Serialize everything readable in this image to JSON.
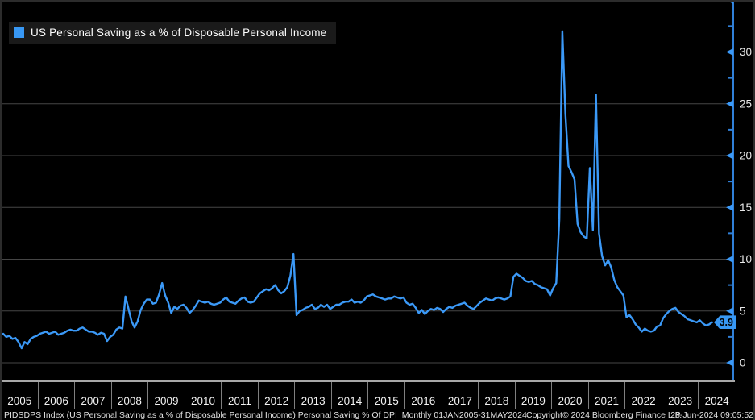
{
  "colors": {
    "background": "#000000",
    "line": "#3b99f7",
    "axis": "#3080d8",
    "gridline": "#464646",
    "tick_label": "#e9e9e9",
    "legend_bg": "#1a1a1a",
    "tag_bg": "#3898f4",
    "tag_text": "#000000",
    "frame_border": "#2c2c2c",
    "xaxis_border": "#a8a8a8"
  },
  "legend": {
    "label": "US Personal Saving as a % of Disposable Personal Income",
    "swatch_color": "#3898f4"
  },
  "last_value_label": "3.9",
  "y_axis": {
    "tick_labels": [
      "0",
      "5",
      "10",
      "15",
      "20",
      "25",
      "30"
    ],
    "side": "right"
  },
  "x_axis": {
    "years": [
      "2005",
      "2006",
      "2007",
      "2008",
      "2009",
      "2010",
      "2011",
      "2012",
      "2013",
      "2014",
      "2015",
      "2016",
      "2017",
      "2018",
      "2019",
      "2020",
      "2021",
      "2022",
      "2023",
      "2024"
    ]
  },
  "status_bar": {
    "left": "PIDSDPS Index (US Personal Saving as a % of Disposable Personal Income) Personal Saving % Of DPI  Monthly 01JAN2005-31MAY2024",
    "center": "Copyright© 2024 Bloomberg Finance L.P.",
    "right": "28-Jun-2024 09:05:52"
  },
  "chart_data": {
    "type": "line",
    "title": "US Personal Saving as a % of Disposable Personal Income",
    "frequency": "monthly",
    "x_start": "2005-01",
    "x_end": "2024-05",
    "ylabel": "",
    "ylim": [
      0,
      35
    ],
    "y_ticks": [
      0,
      5,
      10,
      15,
      20,
      25,
      30,
      35
    ],
    "grid": true,
    "legend_position": "top-left",
    "last_value": 3.9,
    "series": [
      {
        "name": "US Personal Saving as a % of Disposable Personal Income",
        "color": "#3b99f7",
        "values": [
          2.8,
          2.5,
          2.6,
          2.3,
          2.4,
          2.0,
          1.4,
          2.0,
          1.8,
          2.3,
          2.5,
          2.6,
          2.8,
          2.9,
          3.0,
          2.8,
          2.9,
          3.0,
          2.7,
          2.8,
          2.9,
          3.1,
          3.2,
          3.1,
          3.1,
          3.3,
          3.4,
          3.2,
          3.0,
          3.0,
          2.9,
          2.7,
          2.9,
          2.8,
          2.1,
          2.5,
          2.7,
          3.2,
          3.4,
          3.3,
          6.4,
          5.2,
          4.0,
          3.4,
          4.0,
          5.1,
          5.7,
          6.1,
          6.1,
          5.7,
          5.8,
          6.6,
          7.7,
          6.5,
          5.8,
          4.8,
          5.4,
          5.2,
          5.5,
          5.6,
          5.3,
          4.8,
          5.1,
          5.5,
          6.0,
          5.9,
          5.8,
          5.9,
          5.7,
          5.6,
          5.7,
          5.8,
          6.1,
          6.3,
          5.9,
          5.8,
          5.7,
          6.0,
          6.2,
          6.3,
          5.9,
          5.8,
          5.9,
          6.3,
          6.7,
          6.9,
          7.1,
          7.0,
          7.2,
          7.5,
          7.0,
          6.7,
          6.9,
          7.3,
          8.4,
          10.5,
          4.6,
          5.0,
          5.1,
          5.3,
          5.4,
          5.6,
          5.2,
          5.3,
          5.6,
          5.4,
          5.6,
          5.2,
          5.4,
          5.6,
          5.6,
          5.8,
          5.9,
          5.9,
          6.1,
          5.8,
          5.9,
          5.8,
          6.0,
          6.4,
          6.5,
          6.6,
          6.4,
          6.3,
          6.2,
          6.1,
          6.2,
          6.2,
          6.4,
          6.3,
          6.2,
          6.3,
          5.8,
          5.6,
          5.7,
          5.3,
          4.8,
          5.1,
          4.7,
          5.0,
          5.2,
          5.1,
          5.3,
          5.2,
          4.9,
          5.2,
          5.4,
          5.3,
          5.5,
          5.6,
          5.7,
          5.8,
          5.5,
          5.3,
          5.2,
          5.5,
          5.8,
          6.0,
          6.2,
          6.1,
          6.0,
          6.2,
          6.3,
          6.2,
          6.1,
          6.2,
          6.4,
          8.3,
          8.6,
          8.4,
          8.2,
          7.9,
          7.8,
          7.9,
          7.6,
          7.5,
          7.3,
          7.2,
          7.1,
          6.5,
          7.2,
          7.7,
          13.8,
          32.0,
          24.0,
          19.0,
          18.4,
          17.7,
          13.4,
          12.6,
          12.2,
          12.0,
          18.8,
          12.8,
          25.9,
          12.5,
          10.3,
          9.4,
          9.9,
          9.2,
          8.0,
          7.3,
          6.9,
          6.5,
          4.4,
          4.6,
          4.2,
          3.7,
          3.4,
          3.0,
          3.3,
          3.1,
          3.0,
          3.1,
          3.5,
          3.6,
          4.3,
          4.7,
          5.0,
          5.2,
          5.3,
          4.9,
          4.7,
          4.5,
          4.2,
          4.1,
          4.0,
          3.9,
          4.1,
          3.8,
          3.6,
          3.7,
          3.9
        ]
      }
    ]
  }
}
